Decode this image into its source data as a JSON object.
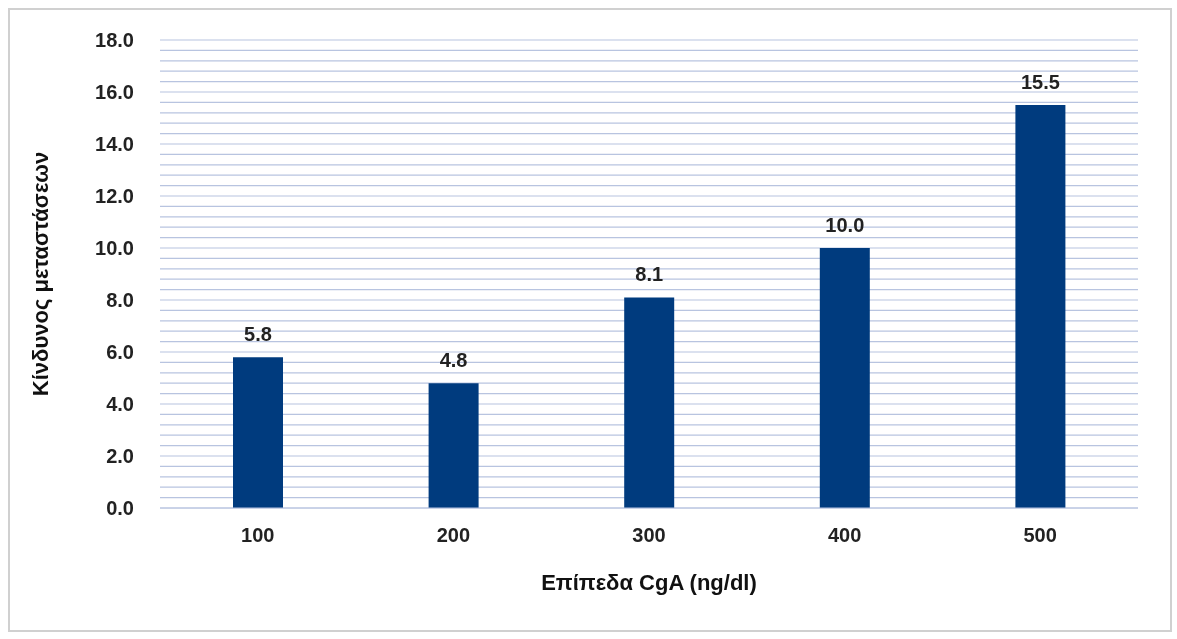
{
  "chart_data": {
    "type": "bar",
    "xlabel": "Επίπεδα CgA (ng/dl)",
    "ylabel": "Κίνδυνος μεταστάσεων",
    "categories": [
      "100",
      "200",
      "300",
      "400",
      "500"
    ],
    "values": [
      5.8,
      4.8,
      8.1,
      10.0,
      15.5
    ],
    "color": "#003b7e",
    "value_labels": [
      "5.8",
      "4.8",
      "8.1",
      "10.0",
      "15.5"
    ],
    "ylim": [
      0,
      18
    ],
    "yticks": [
      {
        "value": 0,
        "label": "0.0"
      },
      {
        "value": 0.4,
        "label": null
      },
      {
        "value": 0.8,
        "label": null
      },
      {
        "value": 1.2,
        "label": null
      },
      {
        "value": 1.6,
        "label": null
      },
      {
        "value": 2,
        "label": "2.0"
      },
      {
        "value": 2.4,
        "label": null
      },
      {
        "value": 2.8,
        "label": null
      },
      {
        "value": 3.2,
        "label": null
      },
      {
        "value": 3.6,
        "label": null
      },
      {
        "value": 4,
        "label": "4.0"
      },
      {
        "value": 4.4,
        "label": null
      },
      {
        "value": 4.8,
        "label": null
      },
      {
        "value": 5.2,
        "label": null
      },
      {
        "value": 5.6,
        "label": null
      },
      {
        "value": 6,
        "label": "6.0"
      },
      {
        "value": 6.4,
        "label": null
      },
      {
        "value": 6.8,
        "label": null
      },
      {
        "value": 7.2,
        "label": null
      },
      {
        "value": 7.6,
        "label": null
      },
      {
        "value": 8,
        "label": "8.0"
      },
      {
        "value": 8.4,
        "label": null
      },
      {
        "value": 8.8,
        "label": null
      },
      {
        "value": 9.2,
        "label": null
      },
      {
        "value": 9.6,
        "label": null
      },
      {
        "value": 10,
        "label": "10.0"
      },
      {
        "value": 10.4,
        "label": null
      },
      {
        "value": 10.8,
        "label": null
      },
      {
        "value": 11.2,
        "label": null
      },
      {
        "value": 11.6,
        "label": null
      },
      {
        "value": 12,
        "label": "12.0"
      },
      {
        "value": 12.4,
        "label": null
      },
      {
        "value": 12.8,
        "label": null
      },
      {
        "value": 13.2,
        "label": null
      },
      {
        "value": 13.6,
        "label": null
      },
      {
        "value": 14,
        "label": "14.0"
      },
      {
        "value": 14.4,
        "label": null
      },
      {
        "value": 14.8,
        "label": null
      },
      {
        "value": 15.2,
        "label": null
      },
      {
        "value": 15.6,
        "label": null
      },
      {
        "value": 16,
        "label": "16.0"
      },
      {
        "value": 16.4,
        "label": null
      },
      {
        "value": 16.8,
        "label": null
      },
      {
        "value": 17.2,
        "label": null
      },
      {
        "value": 17.6,
        "label": null
      },
      {
        "value": 18,
        "label": "18.0"
      }
    ],
    "grid": "y"
  }
}
